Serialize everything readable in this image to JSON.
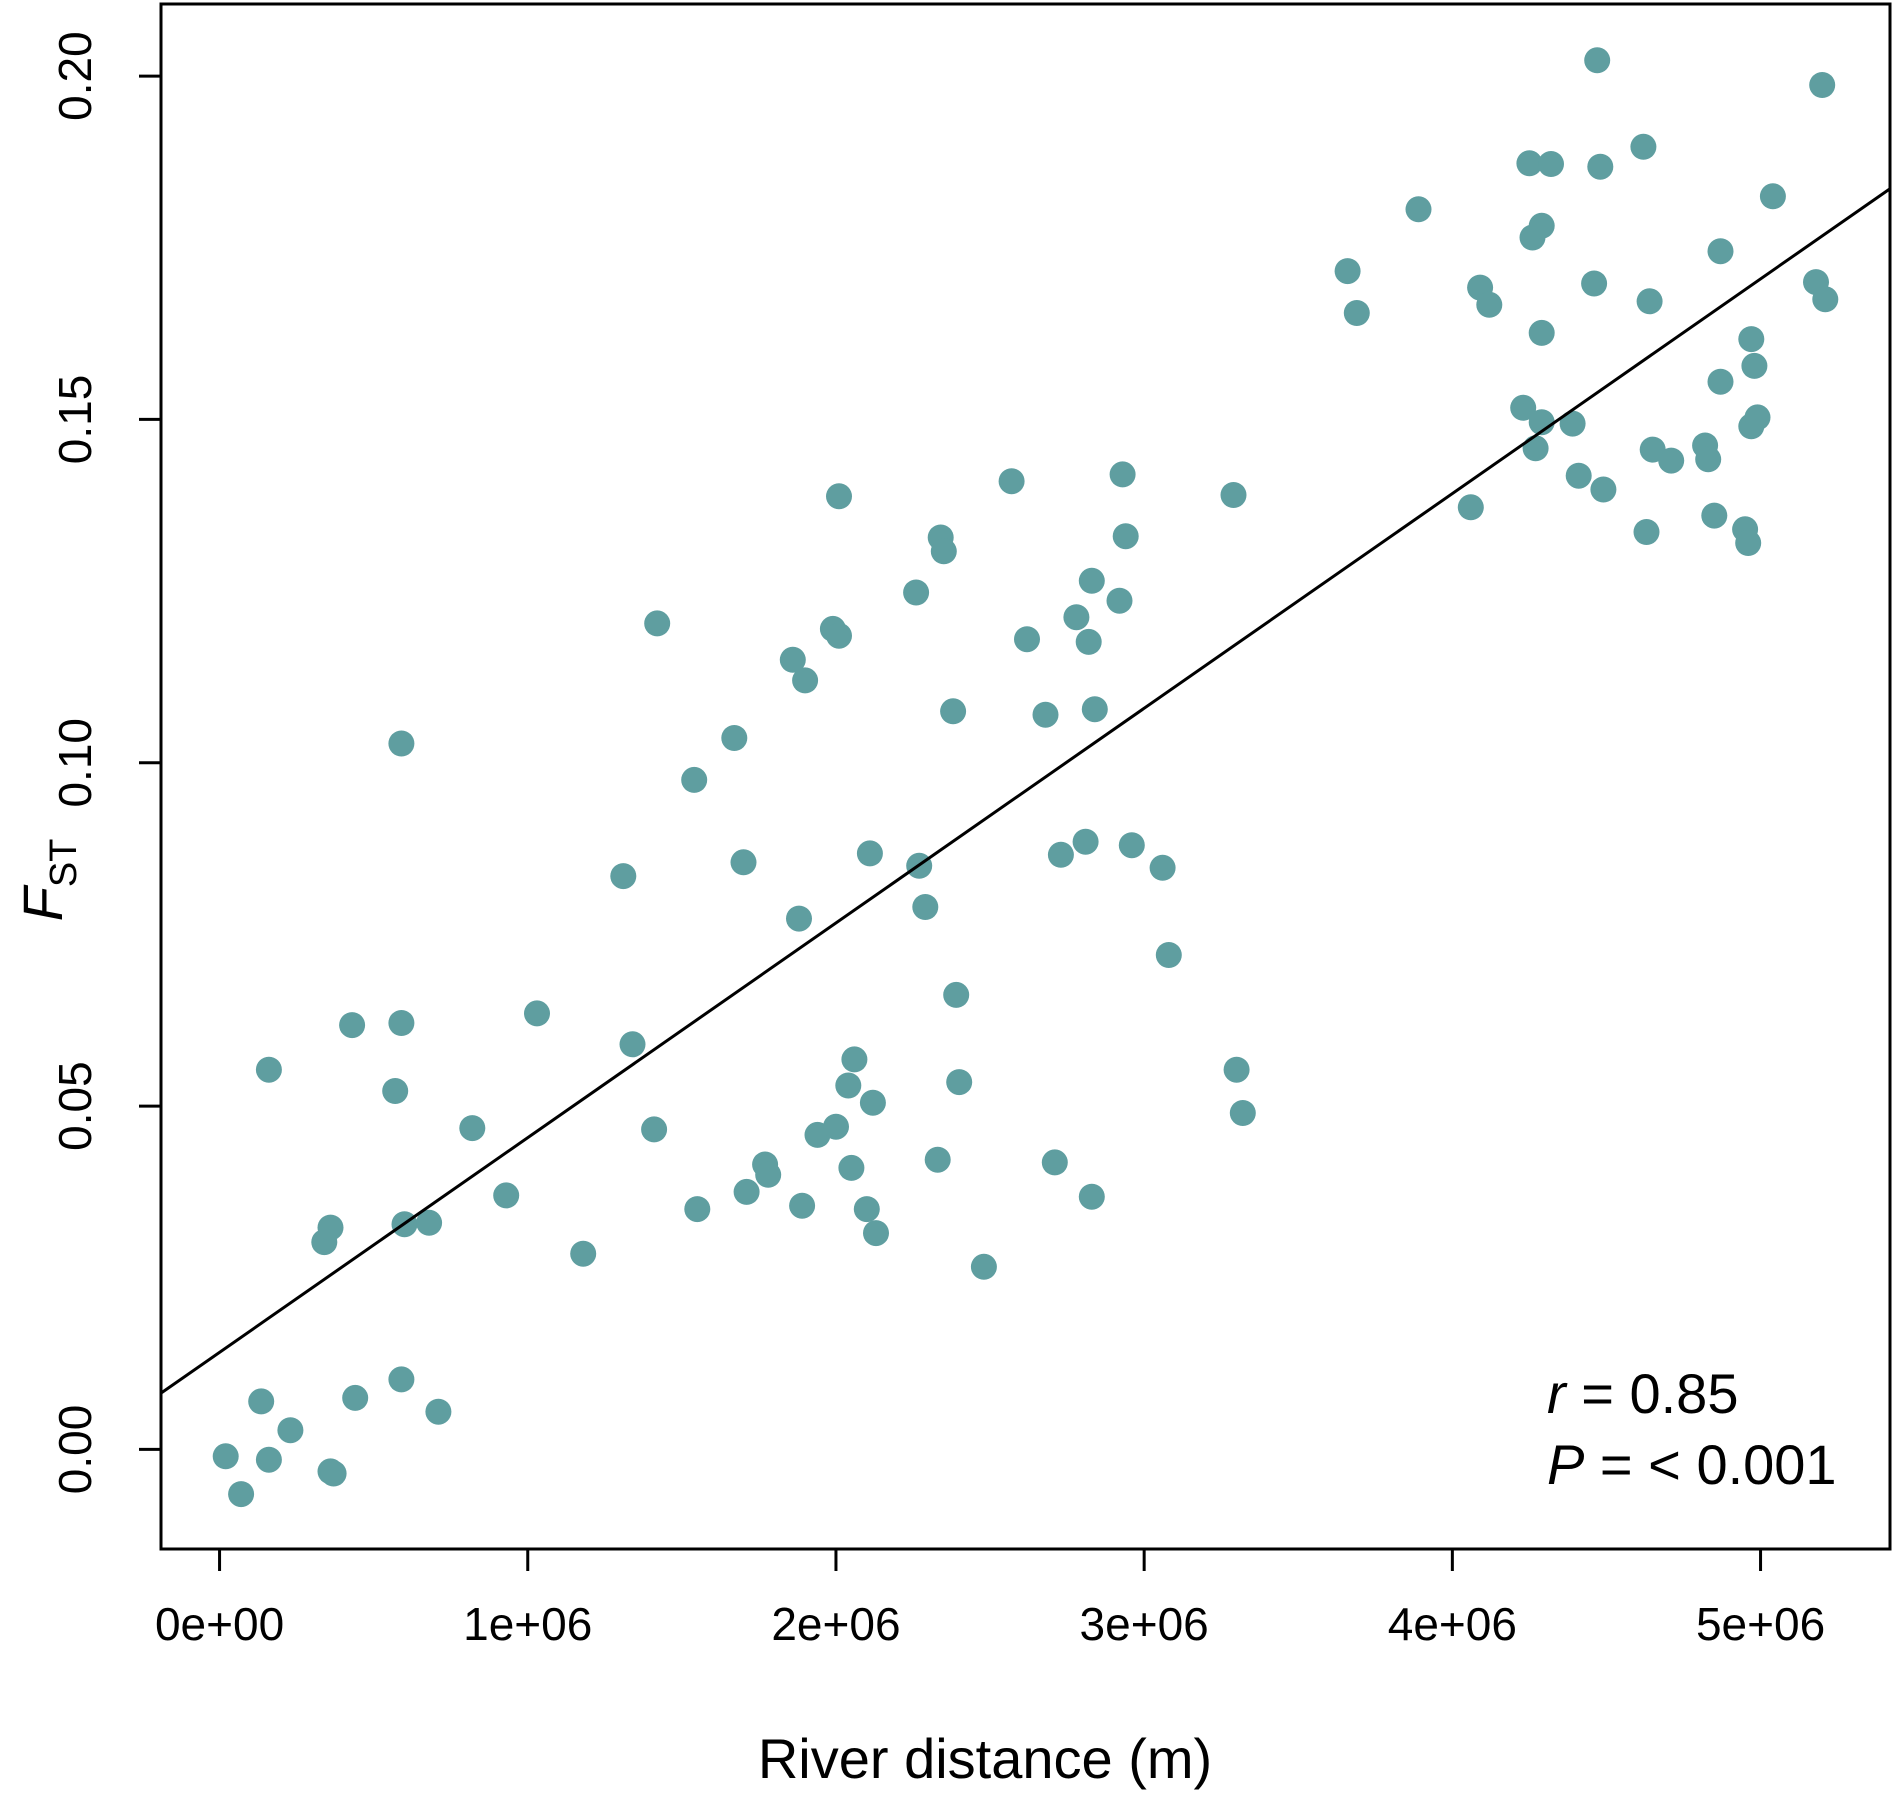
{
  "chart_data": {
    "type": "scatter",
    "xlabel": "River distance (m)",
    "ylabel": "F",
    "ylabel_sub": "ST",
    "xlim": [
      -190000,
      5420000
    ],
    "ylim": [
      -0.0145,
      0.2105
    ],
    "xticks": [
      0,
      1000000,
      2000000,
      3000000,
      4000000,
      5000000
    ],
    "xtick_labels": [
      "0e+00",
      "1e+06",
      "2e+06",
      "3e+06",
      "4e+06",
      "5e+06"
    ],
    "yticks": [
      0.0,
      0.05,
      0.1,
      0.15,
      0.2
    ],
    "ytick_labels": [
      "0.00",
      "0.05",
      "0.10",
      "0.15",
      "0.20"
    ],
    "grid": false,
    "point_color": "#5f9ea0",
    "fit_line": {
      "x": [
        -190000,
        5420000
      ],
      "y": [
        0.0082,
        0.1836
      ],
      "color": "#000000"
    },
    "annotation": {
      "r_symbol": "r",
      "r_text": " = 0.85",
      "p_symbol": "P",
      "p_text": " = < 0.001"
    },
    "points": [
      {
        "x": 20000,
        "y": -0.001
      },
      {
        "x": 70000,
        "y": -0.0065
      },
      {
        "x": 135000,
        "y": 0.007
      },
      {
        "x": 160000,
        "y": -0.0015
      },
      {
        "x": 230000,
        "y": 0.0028
      },
      {
        "x": 360000,
        "y": -0.0032
      },
      {
        "x": 370000,
        "y": -0.0035
      },
      {
        "x": 440000,
        "y": 0.0075
      },
      {
        "x": 590000,
        "y": 0.0102
      },
      {
        "x": 710000,
        "y": 0.0055
      },
      {
        "x": 160000,
        "y": 0.0553
      },
      {
        "x": 340000,
        "y": 0.0302
      },
      {
        "x": 360000,
        "y": 0.0323
      },
      {
        "x": 430000,
        "y": 0.0618
      },
      {
        "x": 570000,
        "y": 0.0522
      },
      {
        "x": 590000,
        "y": 0.0621
      },
      {
        "x": 590000,
        "y": 0.1028
      },
      {
        "x": 600000,
        "y": 0.0328
      },
      {
        "x": 680000,
        "y": 0.033
      },
      {
        "x": 820000,
        "y": 0.0468
      },
      {
        "x": 930000,
        "y": 0.037
      },
      {
        "x": 1030000,
        "y": 0.0635
      },
      {
        "x": 1180000,
        "y": 0.0285
      },
      {
        "x": 1310000,
        "y": 0.0835
      },
      {
        "x": 1340000,
        "y": 0.059
      },
      {
        "x": 1410000,
        "y": 0.0466
      },
      {
        "x": 1420000,
        "y": 0.1203
      },
      {
        "x": 1540000,
        "y": 0.0975
      },
      {
        "x": 1550000,
        "y": 0.035
      },
      {
        "x": 1670000,
        "y": 0.1036
      },
      {
        "x": 1700000,
        "y": 0.0855
      },
      {
        "x": 1710000,
        "y": 0.0375
      },
      {
        "x": 1770000,
        "y": 0.0415
      },
      {
        "x": 1780000,
        "y": 0.04
      },
      {
        "x": 1860000,
        "y": 0.115
      },
      {
        "x": 1880000,
        "y": 0.0773
      },
      {
        "x": 1890000,
        "y": 0.0355
      },
      {
        "x": 1900000,
        "y": 0.112
      },
      {
        "x": 1940000,
        "y": 0.0458
      },
      {
        "x": 1990000,
        "y": 0.1195
      },
      {
        "x": 2000000,
        "y": 0.047
      },
      {
        "x": 2010000,
        "y": 0.1388
      },
      {
        "x": 2010000,
        "y": 0.1185
      },
      {
        "x": 2040000,
        "y": 0.053
      },
      {
        "x": 2050000,
        "y": 0.041
      },
      {
        "x": 2060000,
        "y": 0.0568
      },
      {
        "x": 2100000,
        "y": 0.035
      },
      {
        "x": 2110000,
        "y": 0.0868
      },
      {
        "x": 2120000,
        "y": 0.0505
      },
      {
        "x": 2130000,
        "y": 0.0315
      },
      {
        "x": 2260000,
        "y": 0.1248
      },
      {
        "x": 2270000,
        "y": 0.085
      },
      {
        "x": 2290000,
        "y": 0.079
      },
      {
        "x": 2330000,
        "y": 0.0422
      },
      {
        "x": 2340000,
        "y": 0.1328
      },
      {
        "x": 2350000,
        "y": 0.1308
      },
      {
        "x": 2380000,
        "y": 0.1075
      },
      {
        "x": 2390000,
        "y": 0.0662
      },
      {
        "x": 2400000,
        "y": 0.0535
      },
      {
        "x": 2480000,
        "y": 0.0266
      },
      {
        "x": 2570000,
        "y": 0.141
      },
      {
        "x": 2620000,
        "y": 0.118
      },
      {
        "x": 2680000,
        "y": 0.107
      },
      {
        "x": 2710000,
        "y": 0.0418
      },
      {
        "x": 2730000,
        "y": 0.0866
      },
      {
        "x": 2780000,
        "y": 0.1212
      },
      {
        "x": 2810000,
        "y": 0.0885
      },
      {
        "x": 2820000,
        "y": 0.1176
      },
      {
        "x": 2830000,
        "y": 0.1265
      },
      {
        "x": 2830000,
        "y": 0.0368
      },
      {
        "x": 2840000,
        "y": 0.1078
      },
      {
        "x": 2920000,
        "y": 0.1236
      },
      {
        "x": 2930000,
        "y": 0.142
      },
      {
        "x": 2940000,
        "y": 0.133
      },
      {
        "x": 2960000,
        "y": 0.088
      },
      {
        "x": 3060000,
        "y": 0.0847
      },
      {
        "x": 3080000,
        "y": 0.072
      },
      {
        "x": 3290000,
        "y": 0.139
      },
      {
        "x": 3300000,
        "y": 0.0553
      },
      {
        "x": 3320000,
        "y": 0.049
      },
      {
        "x": 3660000,
        "y": 0.1716
      },
      {
        "x": 3690000,
        "y": 0.1655
      },
      {
        "x": 3890000,
        "y": 0.1806
      },
      {
        "x": 4060000,
        "y": 0.1372
      },
      {
        "x": 4090000,
        "y": 0.1692
      },
      {
        "x": 4120000,
        "y": 0.1667
      },
      {
        "x": 4230000,
        "y": 0.1517
      },
      {
        "x": 4250000,
        "y": 0.1873
      },
      {
        "x": 4260000,
        "y": 0.1765
      },
      {
        "x": 4270000,
        "y": 0.1458
      },
      {
        "x": 4290000,
        "y": 0.1782
      },
      {
        "x": 4290000,
        "y": 0.1626
      },
      {
        "x": 4290000,
        "y": 0.1496
      },
      {
        "x": 4320000,
        "y": 0.1872
      },
      {
        "x": 4390000,
        "y": 0.1494
      },
      {
        "x": 4410000,
        "y": 0.1418
      },
      {
        "x": 4460000,
        "y": 0.1698
      },
      {
        "x": 4470000,
        "y": 0.2023
      },
      {
        "x": 4480000,
        "y": 0.1868
      },
      {
        "x": 4490000,
        "y": 0.1398
      },
      {
        "x": 4620000,
        "y": 0.1897
      },
      {
        "x": 4630000,
        "y": 0.1336
      },
      {
        "x": 4640000,
        "y": 0.1672
      },
      {
        "x": 4650000,
        "y": 0.1456
      },
      {
        "x": 4710000,
        "y": 0.144
      },
      {
        "x": 4820000,
        "y": 0.1462
      },
      {
        "x": 4830000,
        "y": 0.1442
      },
      {
        "x": 4850000,
        "y": 0.136
      },
      {
        "x": 4870000,
        "y": 0.1745
      },
      {
        "x": 4870000,
        "y": 0.1555
      },
      {
        "x": 4950000,
        "y": 0.134
      },
      {
        "x": 4960000,
        "y": 0.132
      },
      {
        "x": 4970000,
        "y": 0.1617
      },
      {
        "x": 4970000,
        "y": 0.149
      },
      {
        "x": 4980000,
        "y": 0.1578
      },
      {
        "x": 4990000,
        "y": 0.1503
      },
      {
        "x": 5040000,
        "y": 0.1825
      },
      {
        "x": 5180000,
        "y": 0.17
      },
      {
        "x": 5200000,
        "y": 0.1987
      },
      {
        "x": 5210000,
        "y": 0.1675
      }
    ]
  }
}
